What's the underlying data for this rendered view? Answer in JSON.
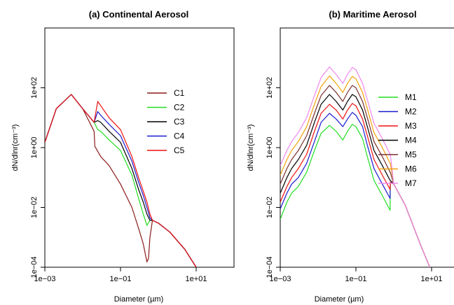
{
  "chart_data": [
    {
      "type": "line",
      "title": "(a) Continental Aerosol",
      "xlabel": "Diameter (µm)",
      "ylabel": "dN/dlnr(cm⁻³)",
      "x_scale": "log",
      "y_scale": "log",
      "xlim": [
        0.001,
        100
      ],
      "ylim": [
        0.0001,
        10000
      ],
      "xticks": [
        0.001,
        0.1,
        10
      ],
      "xtick_labels": [
        "1e−03",
        "1e−01",
        "1e+01"
      ],
      "yticks": [
        0.0001,
        0.01,
        1,
        100
      ],
      "ytick_labels": [
        "1e−04",
        "1e−02",
        "1e+00",
        "1e+02"
      ],
      "grid": false,
      "legend": "right",
      "series": [
        {
          "name": "C1",
          "color": "#8b1a1a",
          "x": [
            0.001,
            0.002,
            0.005,
            0.01,
            0.02,
            0.021,
            0.03,
            0.05,
            0.1,
            0.2,
            0.3,
            0.4,
            0.5,
            0.55,
            0.6,
            0.7,
            1,
            2,
            5,
            10
          ],
          "y": [
            1.5,
            20,
            60,
            20,
            3.5,
            1.1,
            0.5,
            0.25,
            0.06,
            0.01,
            0.002,
            0.0006,
            0.00015,
            0.0002,
            0.001,
            0.0037,
            0.003,
            0.0015,
            0.0004,
            0.0001
          ]
        },
        {
          "name": "C2",
          "color": "#22dd22",
          "x": [
            0.001,
            0.002,
            0.005,
            0.01,
            0.02,
            0.025,
            0.03,
            0.05,
            0.1,
            0.2,
            0.3,
            0.4,
            0.5,
            0.6,
            0.7,
            1,
            2,
            5,
            10
          ],
          "y": [
            1.5,
            20,
            60,
            20,
            7,
            4,
            3.5,
            1.8,
            0.8,
            0.12,
            0.02,
            0.006,
            0.0025,
            0.0037,
            0.0037,
            0.003,
            0.0015,
            0.0004,
            0.0001
          ]
        },
        {
          "name": "C3",
          "color": "#000000",
          "x": [
            0.001,
            0.002,
            0.005,
            0.01,
            0.02,
            0.025,
            0.03,
            0.05,
            0.1,
            0.2,
            0.3,
            0.4,
            0.5,
            0.6,
            0.7,
            1,
            2,
            5,
            10
          ],
          "y": [
            1.5,
            20,
            60,
            20,
            7,
            8,
            7,
            3.5,
            1.5,
            0.2,
            0.04,
            0.015,
            0.006,
            0.0037,
            0.0037,
            0.003,
            0.0015,
            0.0004,
            0.0001
          ]
        },
        {
          "name": "C4",
          "color": "#1a1ad0",
          "x": [
            0.001,
            0.002,
            0.005,
            0.01,
            0.02,
            0.025,
            0.03,
            0.05,
            0.1,
            0.2,
            0.3,
            0.4,
            0.5,
            0.6,
            0.7,
            1,
            2,
            5,
            10
          ],
          "y": [
            1.5,
            20,
            60,
            20,
            7,
            16,
            12,
            6,
            2.5,
            0.35,
            0.07,
            0.025,
            0.01,
            0.0045,
            0.0037,
            0.003,
            0.0015,
            0.0004,
            0.0001
          ]
        },
        {
          "name": "C5",
          "color": "#ee1111",
          "x": [
            0.001,
            0.002,
            0.005,
            0.01,
            0.02,
            0.025,
            0.03,
            0.05,
            0.1,
            0.2,
            0.3,
            0.4,
            0.5,
            0.6,
            0.7,
            1,
            2,
            5,
            10
          ],
          "y": [
            1.5,
            20,
            60,
            20,
            7,
            35,
            25,
            10,
            4,
            0.5,
            0.1,
            0.035,
            0.015,
            0.006,
            0.0037,
            0.003,
            0.0015,
            0.0004,
            0.0001
          ]
        }
      ]
    },
    {
      "type": "line",
      "title": "(b) Maritime Aerosol",
      "xlabel": "Diameter (µm)",
      "ylabel": "dN/dlnr(cm⁻³)",
      "x_scale": "log",
      "y_scale": "log",
      "xlim": [
        0.001,
        100
      ],
      "ylim": [
        0.0001,
        10000
      ],
      "xticks": [
        0.001,
        0.1,
        10
      ],
      "xtick_labels": [
        "1e−03",
        "1e−01",
        "1e+01"
      ],
      "yticks": [
        0.0001,
        0.01,
        1,
        100
      ],
      "ytick_labels": [
        "1e−04",
        "1e−02",
        "1e+00",
        "1e+02"
      ],
      "grid": false,
      "legend": "right",
      "series": [
        {
          "name": "M1",
          "color": "#22dd22",
          "x": [
            0.001,
            0.0015,
            0.002,
            0.003,
            0.005,
            0.008,
            0.012,
            0.02,
            0.03,
            0.045,
            0.06,
            0.08,
            0.1,
            0.15,
            0.2,
            0.3,
            0.5,
            0.8,
            0.81,
            1,
            2,
            5,
            9
          ],
          "y": [
            0.004,
            0.015,
            0.03,
            0.05,
            0.15,
            0.8,
            3,
            5.5,
            3.5,
            1.8,
            3.5,
            6,
            5,
            2,
            0.5,
            0.08,
            0.025,
            0.008,
            0.07,
            0.06,
            0.012,
            0.0006,
            0.0001
          ]
        },
        {
          "name": "M2",
          "color": "#1a1ad0",
          "x": [
            0.001,
            0.0015,
            0.002,
            0.003,
            0.005,
            0.008,
            0.012,
            0.02,
            0.03,
            0.045,
            0.06,
            0.08,
            0.1,
            0.15,
            0.2,
            0.3,
            0.5,
            0.8,
            0.81,
            1,
            2,
            5,
            9
          ],
          "y": [
            0.009,
            0.03,
            0.06,
            0.1,
            0.3,
            1.6,
            7,
            14,
            9,
            5,
            9,
            15,
            12,
            5,
            1.2,
            0.2,
            0.06,
            0.02,
            0.07,
            0.06,
            0.012,
            0.0006,
            0.0001
          ]
        },
        {
          "name": "M3",
          "color": "#ee1111",
          "x": [
            0.001,
            0.0015,
            0.002,
            0.003,
            0.005,
            0.008,
            0.012,
            0.02,
            0.03,
            0.045,
            0.06,
            0.08,
            0.1,
            0.15,
            0.2,
            0.3,
            0.5,
            0.8,
            0.81,
            1,
            2,
            5,
            9
          ],
          "y": [
            0.015,
            0.05,
            0.1,
            0.2,
            0.6,
            3.5,
            14,
            28,
            18,
            9,
            18,
            30,
            25,
            9,
            2.5,
            0.4,
            0.12,
            0.04,
            0.07,
            0.06,
            0.012,
            0.0006,
            0.0001
          ]
        },
        {
          "name": "M4",
          "color": "#000000",
          "x": [
            0.001,
            0.0015,
            0.002,
            0.003,
            0.005,
            0.008,
            0.012,
            0.02,
            0.03,
            0.045,
            0.06,
            0.08,
            0.1,
            0.15,
            0.2,
            0.3,
            0.5,
            0.8,
            0.81,
            1,
            2,
            5,
            9
          ],
          "y": [
            0.03,
            0.1,
            0.2,
            0.4,
            1.2,
            7,
            28,
            60,
            35,
            18,
            35,
            60,
            50,
            18,
            5,
            0.8,
            0.25,
            0.08,
            0.08,
            0.06,
            0.012,
            0.0006,
            0.0001
          ]
        },
        {
          "name": "M5",
          "color": "#7a3030",
          "x": [
            0.001,
            0.0015,
            0.002,
            0.003,
            0.005,
            0.008,
            0.012,
            0.02,
            0.03,
            0.045,
            0.06,
            0.08,
            0.1,
            0.15,
            0.2,
            0.3,
            0.5,
            0.8,
            0.81,
            1,
            2,
            5,
            9
          ],
          "y": [
            0.06,
            0.2,
            0.4,
            0.8,
            2.5,
            14,
            55,
            120,
            70,
            35,
            70,
            120,
            100,
            35,
            10,
            1.6,
            0.5,
            0.15,
            0.15,
            0.06,
            0.012,
            0.0006,
            0.0001
          ]
        },
        {
          "name": "M6",
          "color": "#f2a20a",
          "x": [
            0.001,
            0.0015,
            0.002,
            0.003,
            0.005,
            0.008,
            0.012,
            0.02,
            0.03,
            0.045,
            0.06,
            0.08,
            0.1,
            0.15,
            0.2,
            0.3,
            0.5,
            0.8,
            0.81,
            1,
            2,
            5,
            9
          ],
          "y": [
            0.12,
            0.4,
            0.8,
            1.6,
            5,
            28,
            110,
            250,
            140,
            70,
            140,
            240,
            200,
            70,
            20,
            3.2,
            1,
            0.3,
            0.3,
            0.06,
            0.012,
            0.0006,
            0.0001
          ]
        },
        {
          "name": "M7",
          "color": "#ee88ee",
          "x": [
            0.001,
            0.0015,
            0.002,
            0.003,
            0.005,
            0.008,
            0.012,
            0.02,
            0.03,
            0.045,
            0.06,
            0.08,
            0.1,
            0.15,
            0.2,
            0.3,
            0.5,
            0.8,
            0.81,
            1,
            2,
            5,
            9
          ],
          "y": [
            0.25,
            0.8,
            1.6,
            3.2,
            10,
            55,
            220,
            500,
            280,
            140,
            280,
            480,
            400,
            140,
            40,
            6.5,
            2,
            0.6,
            0.6,
            0.06,
            0.012,
            0.0006,
            0.0001
          ]
        }
      ]
    }
  ]
}
